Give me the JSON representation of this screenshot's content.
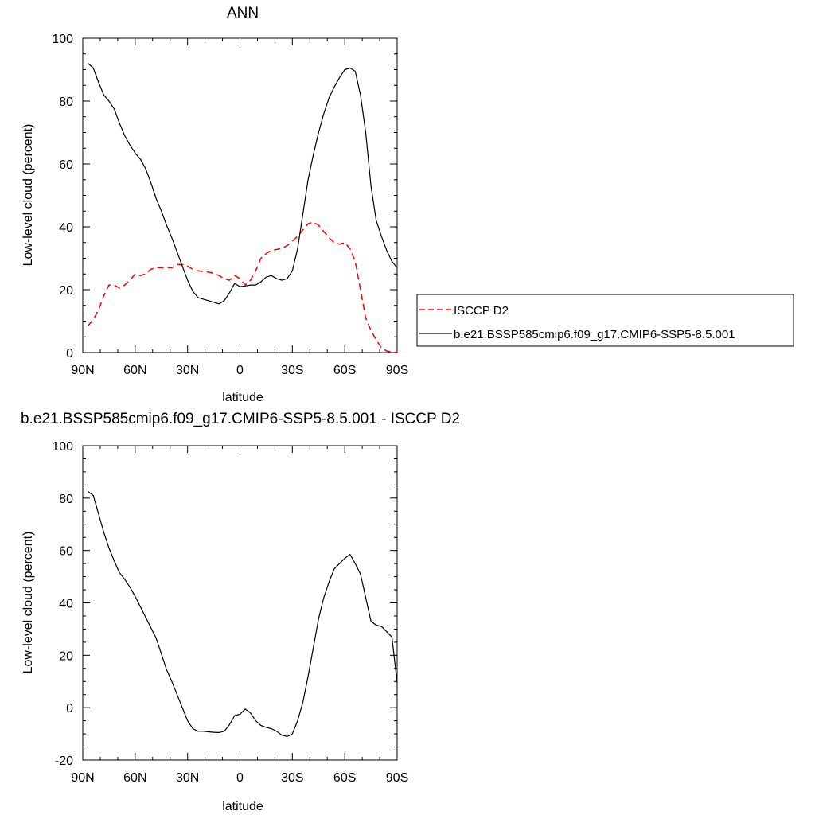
{
  "chart_data": [
    {
      "type": "line",
      "title": "ANN",
      "xlabel": "latitude",
      "ylabel": "Low-level cloud (percent)",
      "xlim": [
        -90,
        90
      ],
      "ylim": [
        0,
        100
      ],
      "x_tick_values": [
        -90,
        -60,
        -30,
        0,
        30,
        60,
        90
      ],
      "x_tick_labels": [
        "90N",
        "60N",
        "30N",
        "0",
        "30S",
        "60S",
        "90S"
      ],
      "y_tick_values": [
        0,
        20,
        40,
        60,
        80,
        100
      ],
      "y_tick_labels": [
        "0",
        "20",
        "40",
        "60",
        "80",
        "100"
      ],
      "legend_position": "right",
      "series": [
        {
          "name": "ISCCP D2",
          "color": "#ff0000",
          "dashed": true,
          "x": [
            -87,
            -84,
            -81,
            -78,
            -75,
            -72,
            -69,
            -66,
            -63,
            -60,
            -57,
            -54,
            -51,
            -48,
            -45,
            -42,
            -39,
            -36,
            -33,
            -30,
            -27,
            -24,
            -21,
            -18,
            -15,
            -12,
            -9,
            -6,
            -3,
            0,
            3,
            6,
            9,
            12,
            15,
            18,
            21,
            24,
            27,
            30,
            33,
            36,
            39,
            42,
            45,
            48,
            51,
            54,
            57,
            60,
            63,
            66,
            69,
            72,
            75,
            78,
            81,
            84,
            87,
            90
          ],
          "y": [
            8.5,
            10.5,
            13.5,
            18,
            21.5,
            21.5,
            20.5,
            21.5,
            23,
            25,
            24.5,
            25,
            26.5,
            27,
            27,
            27,
            27,
            28,
            28,
            27.5,
            26.5,
            26,
            25.8,
            25.6,
            25.2,
            24.5,
            23.5,
            23,
            24.5,
            23.5,
            21.5,
            23,
            26,
            30,
            31.5,
            32.5,
            32.8,
            33.2,
            34,
            35.5,
            37,
            39,
            41,
            41.5,
            40.5,
            38.5,
            36.5,
            35,
            34.5,
            35,
            33,
            29,
            20,
            11,
            7,
            4,
            1.5,
            0.5,
            0.2,
            0
          ]
        },
        {
          "name": "b.e21.BSSP585cmip6.f09_g17.CMIP6-SSP5-8.5.001",
          "color": "#000000",
          "dashed": false,
          "x": [
            -87,
            -84,
            -81,
            -78,
            -75,
            -72,
            -69,
            -66,
            -63,
            -60,
            -57,
            -54,
            -51,
            -48,
            -45,
            -42,
            -39,
            -36,
            -33,
            -30,
            -27,
            -24,
            -21,
            -18,
            -15,
            -12,
            -9,
            -6,
            -3,
            0,
            3,
            6,
            9,
            12,
            15,
            18,
            21,
            24,
            27,
            30,
            33,
            36,
            39,
            42,
            45,
            48,
            51,
            54,
            57,
            60,
            63,
            66,
            69,
            72,
            75,
            78,
            81,
            84,
            87,
            90
          ],
          "y": [
            92,
            90.5,
            86,
            82,
            80,
            77.5,
            73,
            69,
            66,
            63.5,
            61.5,
            58.5,
            54,
            49,
            45,
            40.5,
            36.5,
            32,
            27.5,
            23,
            19.5,
            17.5,
            17,
            16.5,
            16,
            15.5,
            16.5,
            19,
            22,
            21,
            21.2,
            21.5,
            21.5,
            22.5,
            24,
            24.5,
            23.5,
            23,
            23.5,
            26,
            33,
            44,
            55,
            63,
            70,
            76,
            81,
            84.5,
            87.5,
            90,
            90.5,
            89.5,
            82,
            70,
            53,
            42,
            37,
            32.5,
            29,
            27
          ]
        }
      ]
    },
    {
      "type": "line",
      "title": "b.e21.BSSP585cmip6.f09_g17.CMIP6-SSP5-8.5.001 - ISCCP D2",
      "xlabel": "latitude",
      "ylabel": "Low-level cloud (percent)",
      "xlim": [
        -90,
        90
      ],
      "ylim": [
        -20,
        100
      ],
      "x_tick_values": [
        -90,
        -60,
        -30,
        0,
        30,
        60,
        90
      ],
      "x_tick_labels": [
        "90N",
        "60N",
        "30N",
        "0",
        "30S",
        "60S",
        "90S"
      ],
      "y_tick_values": [
        -20,
        0,
        20,
        40,
        60,
        80,
        100
      ],
      "y_tick_labels": [
        "-20",
        "0",
        "20",
        "40",
        "60",
        "80",
        "100"
      ],
      "series": [
        {
          "color": "#000000",
          "dashed": false,
          "x": [
            -87,
            -84,
            -81,
            -78,
            -75,
            -72,
            -69,
            -66,
            -63,
            -60,
            -57,
            -54,
            -51,
            -48,
            -45,
            -42,
            -39,
            -36,
            -33,
            -30,
            -27,
            -24,
            -21,
            -18,
            -15,
            -12,
            -9,
            -6,
            -3,
            0,
            3,
            6,
            9,
            12,
            15,
            18,
            21,
            24,
            27,
            30,
            33,
            36,
            39,
            42,
            45,
            48,
            51,
            54,
            57,
            60,
            63,
            66,
            69,
            72,
            75,
            78,
            81,
            84,
            87,
            90
          ],
          "y": [
            82.5,
            81,
            74,
            67,
            61,
            56,
            51.5,
            49,
            46,
            42.5,
            38.5,
            34.5,
            30.5,
            26.5,
            20.5,
            14.5,
            10,
            5,
            0,
            -5,
            -8,
            -9,
            -9,
            -9.2,
            -9.4,
            -9.5,
            -9,
            -6.5,
            -3,
            -2.5,
            -0.5,
            -2,
            -5,
            -6.8,
            -7.5,
            -8,
            -9,
            -10.5,
            -11,
            -10,
            -5,
            2,
            12,
            23,
            34,
            42,
            48,
            53,
            55,
            57,
            58.5,
            55,
            51,
            42,
            33,
            31.5,
            31,
            29,
            27,
            9.5
          ]
        }
      ]
    }
  ]
}
